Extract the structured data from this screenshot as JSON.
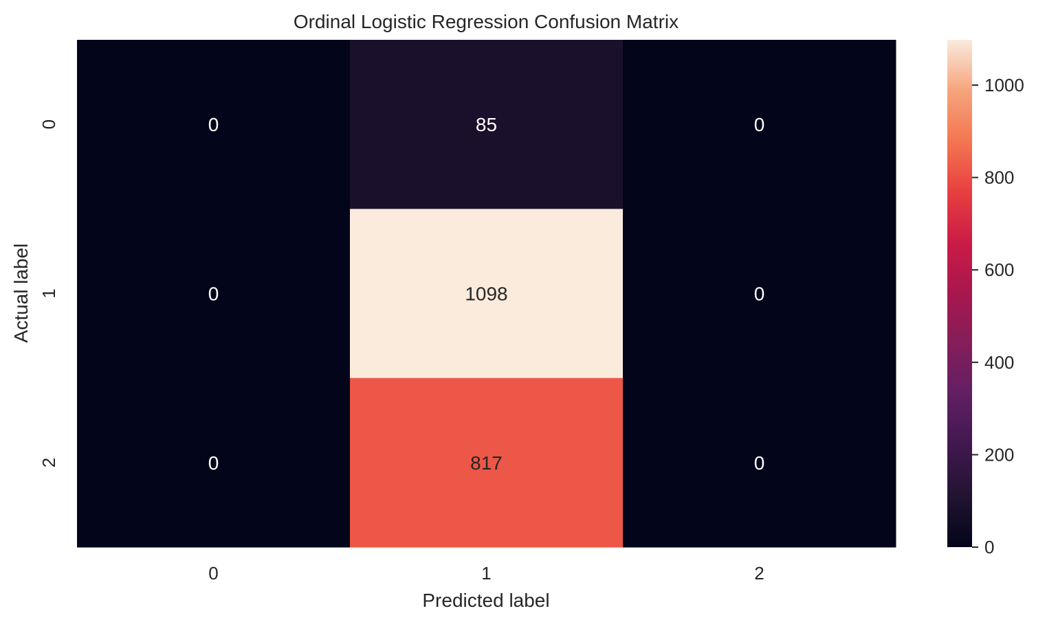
{
  "chart_data": {
    "type": "heatmap",
    "title": "Ordinal Logistic Regression Confusion Matrix",
    "xlabel": "Predicted label",
    "ylabel": "Actual label",
    "x_categories": [
      "0",
      "1",
      "2"
    ],
    "y_categories": [
      "0",
      "1",
      "2"
    ],
    "values": [
      [
        0,
        85,
        0
      ],
      [
        0,
        1098,
        0
      ],
      [
        0,
        817,
        0
      ]
    ],
    "colormap": "rocket",
    "colorbar": {
      "range": [
        0,
        1098
      ],
      "ticks": [
        0,
        200,
        400,
        600,
        800,
        1000
      ]
    },
    "annotation_colors": {
      "on_dark": "#ffffff",
      "on_light": "#262626"
    }
  }
}
